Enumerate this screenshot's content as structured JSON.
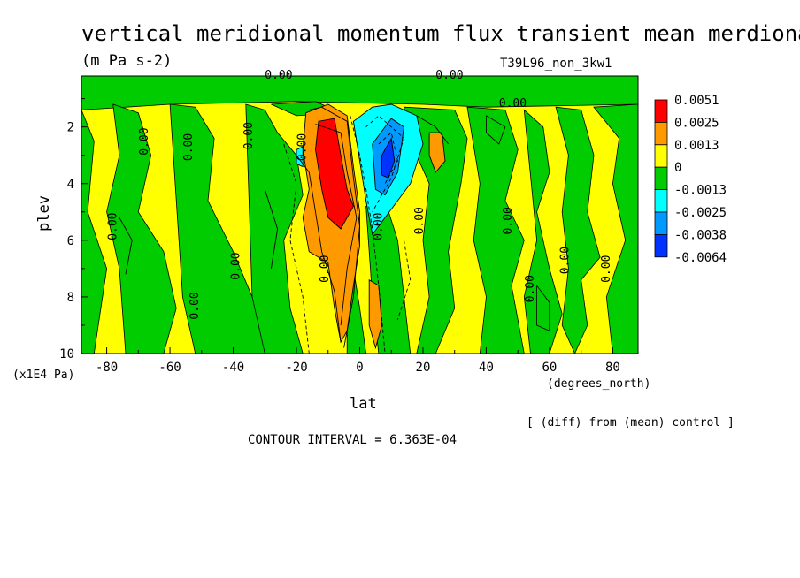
{
  "chart_data": {
    "type": "heatmap",
    "title": "vertical meridional momentum flux transient mean merdional",
    "units": "(m Pa s-2)",
    "run_label": "T39L96_non_3kw1",
    "xlabel": "lat",
    "x_units": "(degrees_north)",
    "ylabel": "plev",
    "y_units": "(x1E4 Pa)",
    "xlim": [
      -88,
      88
    ],
    "ylim": [
      10,
      0.2
    ],
    "x_ticks": [
      -80,
      -60,
      -40,
      -20,
      0,
      20,
      40,
      60,
      80
    ],
    "y_ticks": [
      2,
      4,
      6,
      8,
      10
    ],
    "legend_position": "right",
    "legend_levels": [
      "0.0051",
      "0.0025",
      "0.0013",
      "0",
      "-0.0013",
      "-0.0025",
      "-0.0038",
      "-0.0064"
    ],
    "legend_colors": [
      "#ff0000",
      "#ff9900",
      "#ffff00",
      "#00cc00",
      "#00ffff",
      "#0099ff",
      "#0033ff"
    ],
    "contour_interval": "CONTOUR INTERVAL = 6.363E-04",
    "footnote": "[ (diff) from (mean) control ]",
    "contour_labels": [
      "0.00",
      "0.00",
      "0.00",
      "0.00",
      "0.00",
      "0.00",
      "0.00",
      "0.00",
      "0.00",
      "0.00",
      "0.00",
      "0.00",
      "0.00",
      "0.00",
      "0.00",
      "0.00",
      "0.00"
    ],
    "features": [
      {
        "kind": "positive",
        "level": "0.0051",
        "lat": -7,
        "plev": 3.8
      },
      {
        "kind": "positive",
        "level": "0.0025",
        "lat": -10,
        "plev": 4.5
      },
      {
        "kind": "positive",
        "level": "0.0013",
        "lat": 24,
        "plev": 2.8
      },
      {
        "kind": "negative",
        "level": "-0.0038",
        "lat": 10,
        "plev": 3.2
      },
      {
        "kind": "negative",
        "level": "-0.0025",
        "lat": 8,
        "plev": 3.5
      }
    ]
  }
}
